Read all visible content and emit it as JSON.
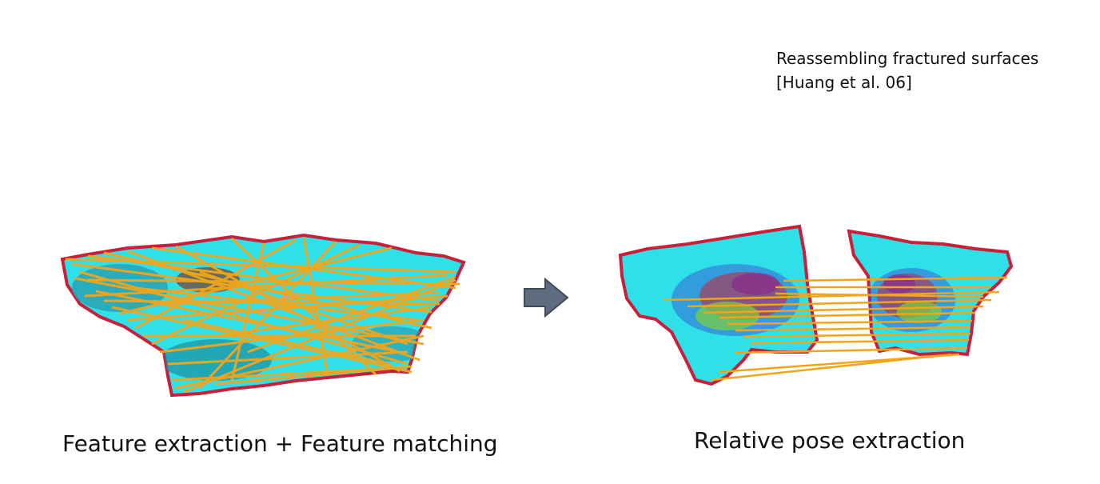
{
  "citation": {
    "line1": "Reassembling fractured surfaces",
    "line2": "[Huang et al. 06]"
  },
  "captions": {
    "left": "Feature extraction + Feature matching",
    "right": "Relative pose extraction"
  },
  "colors": {
    "surface": "#2fe0e8",
    "surface_dark": "#2a9fb0",
    "match_lines": "#f2a51a",
    "edge_red": "#c8203a",
    "edge_blue": "#3a4ad0",
    "arrow_fill": "#5f6c80"
  },
  "icons": [
    "arrow-right-icon"
  ]
}
